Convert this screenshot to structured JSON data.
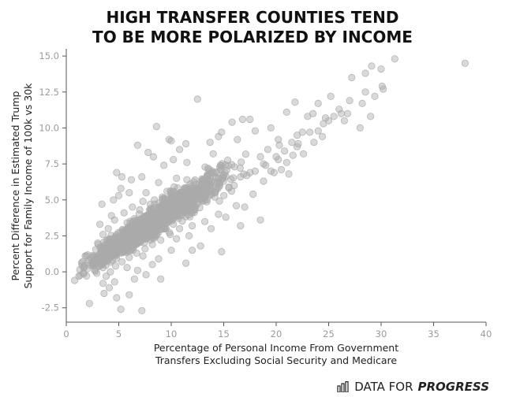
{
  "title_line1": "HIGH TRANSFER COUNTIES TEND",
  "title_line2": "TO BE MORE POLARIZED BY INCOME",
  "footer": {
    "brand_light": "DATA FOR",
    "brand_bold": "PROGRESS"
  },
  "chart_data": {
    "type": "scatter",
    "xlabel_line1": "Percentage of Personal Income From Government",
    "xlabel_line2": "Transfers Excluding Social Security and Medicare",
    "ylabel_line1": "Percent Difference in Estimated Trump",
    "ylabel_line2": "Support for Family Income of 100k vs 30k",
    "xlim": [
      0,
      40
    ],
    "ylim": [
      -3.5,
      15.5
    ],
    "x_ticks": [
      "0",
      "5",
      "10",
      "15",
      "20",
      "25",
      "30",
      "35",
      "40"
    ],
    "y_ticks": [
      "-2.5",
      "0.0",
      "2.5",
      "5.0",
      "7.5",
      "10.0",
      "12.5",
      "15.0"
    ],
    "grid": false,
    "point_color": "#aaaaaa",
    "trend": {
      "intercept": -0.5,
      "slope": 0.48
    },
    "points": [
      [
        38.0,
        14.5
      ],
      [
        31.3,
        14.8
      ],
      [
        30.0,
        14.1
      ],
      [
        29.1,
        14.3
      ],
      [
        27.2,
        13.5
      ],
      [
        28.5,
        13.8
      ],
      [
        30.1,
        12.9
      ],
      [
        29.4,
        12.2
      ],
      [
        30.2,
        12.7
      ],
      [
        28.2,
        11.7
      ],
      [
        27.0,
        11.9
      ],
      [
        28.5,
        12.5
      ],
      [
        25.2,
        12.2
      ],
      [
        24.0,
        11.7
      ],
      [
        26.8,
        11.0
      ],
      [
        28.0,
        10.0
      ],
      [
        29.0,
        10.8
      ],
      [
        26.5,
        10.5
      ],
      [
        21.8,
        11.8
      ],
      [
        22.0,
        9.5
      ],
      [
        23.0,
        10.8
      ],
      [
        23.5,
        11.0
      ],
      [
        21.5,
        9.0
      ],
      [
        20.8,
        8.4
      ],
      [
        19.5,
        10.0
      ],
      [
        17.5,
        10.6
      ],
      [
        15.8,
        10.4
      ],
      [
        18.0,
        9.8
      ],
      [
        21.0,
        11.1
      ],
      [
        24.5,
        10.3
      ],
      [
        8.6,
        10.1
      ],
      [
        14.8,
        9.7
      ],
      [
        16.8,
        10.6
      ],
      [
        14.5,
        9.4
      ],
      [
        13.7,
        9.0
      ],
      [
        16.3,
        9.2
      ],
      [
        12.5,
        12.0
      ],
      [
        10.0,
        9.1
      ],
      [
        9.8,
        9.2
      ],
      [
        10.8,
        8.5
      ],
      [
        11.4,
        8.9
      ],
      [
        6.8,
        8.8
      ],
      [
        7.8,
        8.3
      ],
      [
        8.3,
        8.0
      ],
      [
        10.2,
        7.8
      ],
      [
        9.3,
        7.4
      ],
      [
        11.5,
        7.6
      ],
      [
        13.5,
        7.2
      ],
      [
        4.8,
        6.9
      ],
      [
        5.3,
        6.6
      ],
      [
        6.2,
        6.4
      ],
      [
        7.2,
        6.6
      ],
      [
        18.8,
        7.5
      ],
      [
        19.5,
        7.0
      ],
      [
        20.5,
        7.1
      ],
      [
        21.2,
        6.8
      ],
      [
        20.3,
        8.8
      ],
      [
        22.1,
        8.9
      ],
      [
        20.2,
        9.2
      ],
      [
        22.5,
        9.7
      ],
      [
        3.0,
        1.1
      ],
      [
        2.5,
        0.5
      ],
      [
        1.6,
        -0.1
      ],
      [
        0.8,
        -0.6
      ],
      [
        1.2,
        -0.3
      ],
      [
        2.0,
        0.2
      ],
      [
        2.8,
        0.8
      ],
      [
        3.2,
        1.7
      ],
      [
        3.5,
        -0.8
      ],
      [
        4.1,
        -1.1
      ],
      [
        4.6,
        -0.7
      ],
      [
        2.2,
        -2.2
      ],
      [
        3.6,
        -1.5
      ],
      [
        4.8,
        -1.8
      ],
      [
        5.2,
        -2.6
      ],
      [
        7.2,
        -2.7
      ],
      [
        6.5,
        -0.5
      ],
      [
        6.0,
        -1.6
      ],
      [
        3.0,
        2.0
      ],
      [
        3.5,
        2.6
      ],
      [
        4.0,
        2.2
      ],
      [
        3.2,
        3.3
      ],
      [
        4.3,
        3.9
      ],
      [
        3.4,
        4.7
      ],
      [
        4.5,
        5.0
      ],
      [
        5.0,
        5.3
      ],
      [
        5.2,
        5.8
      ],
      [
        6.0,
        5.5
      ],
      [
        9.0,
        -0.5
      ],
      [
        8.2,
        0.5
      ],
      [
        14.8,
        1.4
      ],
      [
        12.0,
        1.5
      ],
      [
        13.8,
        3.0
      ],
      [
        16.6,
        3.2
      ],
      [
        18.5,
        3.6
      ],
      [
        17.0,
        4.5
      ],
      [
        9.5,
        3.0
      ],
      [
        10.5,
        2.3
      ],
      [
        11.7,
        2.5
      ],
      [
        12.8,
        1.8
      ],
      [
        10.0,
        1.5
      ],
      [
        11.4,
        0.6
      ],
      [
        7.6,
        -0.2
      ],
      [
        6.8,
        0.1
      ],
      [
        8.8,
        0.9
      ],
      [
        7.3,
        1.1
      ],
      [
        5.8,
        0.3
      ],
      [
        5.5,
        1.4
      ],
      [
        20.2,
        7.8
      ],
      [
        19.2,
        8.5
      ],
      [
        18.5,
        8.0
      ],
      [
        21.6,
        8.1
      ],
      [
        22.0,
        8.7
      ],
      [
        23.2,
        9.7
      ],
      [
        24.0,
        9.8
      ],
      [
        25.0,
        10.5
      ],
      [
        26.2,
        11.0
      ],
      [
        25.5,
        10.8
      ],
      [
        24.7,
        10.7
      ],
      [
        26.0,
        11.3
      ],
      [
        16.0,
        6.0
      ],
      [
        17.2,
        6.7
      ],
      [
        18.0,
        7.0
      ],
      [
        19.0,
        7.4
      ],
      [
        20.0,
        8.0
      ],
      [
        15.0,
        6.7
      ],
      [
        14.0,
        8.2
      ],
      [
        13.3,
        6.0
      ],
      [
        12.6,
        5.7
      ],
      [
        11.0,
        5.5
      ],
      [
        11.5,
        6.4
      ],
      [
        10.5,
        6.5
      ],
      [
        9.6,
        5.6
      ],
      [
        8.8,
        6.2
      ],
      [
        8.0,
        4.7
      ],
      [
        7.6,
        5.5
      ],
      [
        7.0,
        4.3
      ],
      [
        6.5,
        3.7
      ],
      [
        5.8,
        3.4
      ],
      [
        5.4,
        2.6
      ],
      [
        4.9,
        2.4
      ],
      [
        4.4,
        1.6
      ],
      [
        3.8,
        1.3
      ],
      [
        3.3,
        0.6
      ],
      [
        12.2,
        4.6
      ],
      [
        13.0,
        4.9
      ],
      [
        14.2,
        5.5
      ],
      [
        15.5,
        5.9
      ],
      [
        16.6,
        6.6
      ],
      [
        17.5,
        6.9
      ],
      [
        9.2,
        3.9
      ],
      [
        10.4,
        4.3
      ],
      [
        11.3,
        4.8
      ],
      [
        8.6,
        3.2
      ],
      [
        7.8,
        3.3
      ],
      [
        6.9,
        2.9
      ],
      [
        6.1,
        2.4
      ],
      [
        5.6,
        2.0
      ],
      [
        5.0,
        1.7
      ],
      [
        4.5,
        1.2
      ],
      [
        4.0,
        0.9
      ],
      [
        3.5,
        0.3
      ],
      [
        15.2,
        3.8
      ],
      [
        16.2,
        4.6
      ],
      [
        17.8,
        5.4
      ],
      [
        14.5,
        4.0
      ],
      [
        13.2,
        3.5
      ],
      [
        12.0,
        3.2
      ],
      [
        10.8,
        3.0
      ],
      [
        9.9,
        2.6
      ],
      [
        9.0,
        2.2
      ],
      [
        8.2,
        1.9
      ],
      [
        7.5,
        1.6
      ],
      [
        6.7,
        1.3
      ],
      [
        6.0,
        1.0
      ],
      [
        5.3,
        0.7
      ],
      [
        4.7,
        0.4
      ],
      [
        4.2,
        0.0
      ],
      [
        3.8,
        -0.3
      ],
      [
        2.9,
        -0.1
      ],
      [
        18.8,
        6.3
      ],
      [
        19.8,
        6.9
      ],
      [
        21.0,
        7.6
      ],
      [
        22.6,
        8.2
      ],
      [
        23.6,
        9.0
      ],
      [
        24.4,
        9.4
      ],
      [
        8.4,
        5.0
      ],
      [
        9.4,
        5.1
      ],
      [
        10.2,
        5.6
      ],
      [
        11.8,
        6.1
      ],
      [
        13.0,
        6.4
      ],
      [
        14.0,
        6.9
      ],
      [
        6.3,
        4.5
      ],
      [
        7.3,
        4.9
      ],
      [
        5.5,
        4.1
      ],
      [
        4.6,
        3.6
      ],
      [
        4.0,
        3.0
      ],
      [
        5.9,
        3.0
      ]
    ]
  }
}
